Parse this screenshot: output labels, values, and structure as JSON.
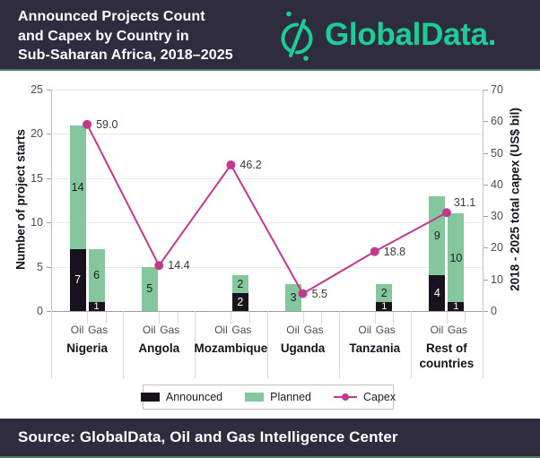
{
  "header": {
    "title_lines": [
      "Announced Projects Count",
      "and Capex by Country in",
      "Sub-Saharan Africa, 2018–2025"
    ],
    "brand_wordmark": "GlobalData.",
    "brand_color": "#1ccd96",
    "bar_bg": "#2f2c3f"
  },
  "footer": {
    "source": "Source: GlobalData, Oil and Gas Intelligence Center",
    "bar_bg": "#2f2c3f"
  },
  "chart_data": {
    "type": "bar",
    "subtype": "stacked-columns-with-line-overlay",
    "title": "Announced Projects Count and Capex by Country in Sub-Saharan Africa, 2018–2025",
    "categories": [
      "Nigeria",
      "Angola",
      "Mozambique",
      "Uganda",
      "Tanzania",
      "Rest of countries"
    ],
    "sub_categories": [
      "Oil",
      "Gas"
    ],
    "series": [
      {
        "name": "Announced",
        "type": "bar",
        "color": "#18121f",
        "label_color": "#ffffff",
        "values": {
          "Oil": [
            7,
            0,
            0,
            0,
            0,
            4
          ],
          "Gas": [
            1,
            0,
            2,
            0,
            1,
            1
          ]
        }
      },
      {
        "name": "Planned",
        "type": "bar",
        "color": "#84c79c",
        "label_color": "#1d1a26",
        "values": {
          "Oil": [
            14,
            5,
            0,
            3,
            0,
            9
          ],
          "Gas": [
            6,
            0,
            2,
            0,
            2,
            10
          ]
        }
      },
      {
        "name": "Capex",
        "type": "line",
        "color": "#bf3a8e",
        "values": [
          59.0,
          14.4,
          46.2,
          5.5,
          18.8,
          31.1
        ],
        "value_labels": [
          "59.0",
          "14.4",
          "46.2",
          "5.5",
          "18.8",
          "31.1"
        ]
      }
    ],
    "bar_totals": {
      "Oil": [
        21,
        5,
        0,
        3,
        0,
        13
      ],
      "Gas": [
        7,
        0,
        4,
        0,
        3,
        11
      ]
    },
    "left_axis": {
      "title": "Number of project starts",
      "min": 0,
      "max": 25,
      "ticks": [
        0,
        5,
        10,
        15,
        20,
        25
      ]
    },
    "right_axis": {
      "title": "2018 - 2025 total capex (US$ bil)",
      "min": 0,
      "max": 70,
      "ticks": [
        0,
        10,
        20,
        30,
        40,
        50,
        60,
        70
      ]
    },
    "gridlines": "horizontal",
    "stacking": "Announced on bottom, Planned on top",
    "legend_position": "bottom"
  }
}
